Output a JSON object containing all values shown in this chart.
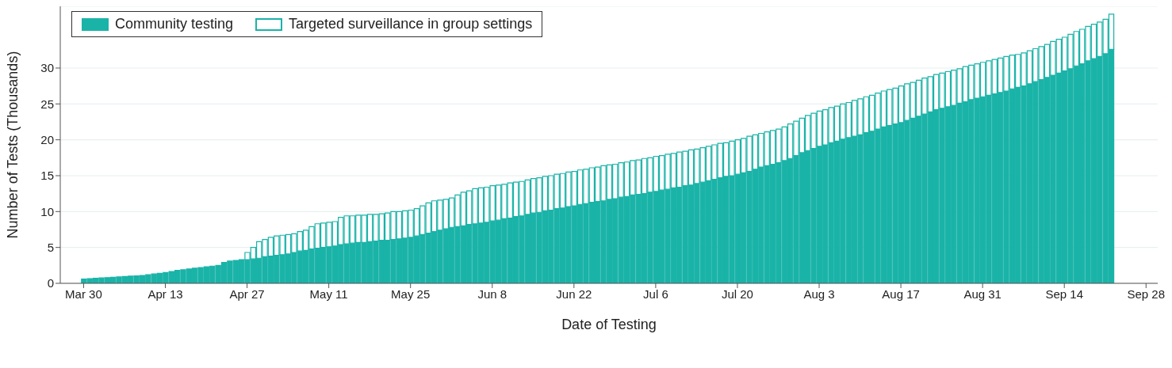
{
  "chart_data": {
    "type": "bar",
    "stacked": true,
    "xlabel": "Date of Testing",
    "ylabel": "Number of Tests (Thousands)",
    "grid": "y",
    "legend": "top left",
    "x": [
      "--03-30",
      "--03-31",
      "--04-01",
      "--04-02",
      "--04-03",
      "--04-04",
      "--04-05",
      "--04-06",
      "--04-07",
      "--04-08",
      "--04-09",
      "--04-10",
      "--04-11",
      "--04-12",
      "--04-13",
      "--04-14",
      "--04-15",
      "--04-16",
      "--04-17",
      "--04-18",
      "--04-19",
      "--04-20",
      "--04-21",
      "--04-22",
      "--04-23",
      "--04-24",
      "--04-25",
      "--04-26",
      "--04-27",
      "--04-28",
      "--04-29",
      "--04-30",
      "--05-01",
      "--05-02",
      "--05-03",
      "--05-04",
      "--05-05",
      "--05-06",
      "--05-07",
      "--05-08",
      "--05-09",
      "--05-10",
      "--05-11",
      "--05-12",
      "--05-13",
      "--05-14",
      "--05-15",
      "--05-16",
      "--05-17",
      "--05-18",
      "--05-19",
      "--05-20",
      "--05-21",
      "--05-22",
      "--05-23",
      "--05-24",
      "--05-25",
      "--05-26",
      "--05-27",
      "--05-28",
      "--05-29",
      "--05-30",
      "--05-31",
      "--06-01",
      "--06-02",
      "--06-03",
      "--06-04",
      "--06-05",
      "--06-06",
      "--06-07",
      "--06-08",
      "--06-09",
      "--06-10",
      "--06-11",
      "--06-12",
      "--06-13",
      "--06-14",
      "--06-15",
      "--06-16",
      "--06-17",
      "--06-18",
      "--06-19",
      "--06-20",
      "--06-21",
      "--06-22",
      "--06-23",
      "--06-24",
      "--06-25",
      "--06-26",
      "--06-27",
      "--06-28",
      "--06-29",
      "--06-30",
      "--07-01",
      "--07-02",
      "--07-03",
      "--07-04",
      "--07-05",
      "--07-06",
      "--07-07",
      "--07-08",
      "--07-09",
      "--07-10",
      "--07-11",
      "--07-12",
      "--07-13",
      "--07-14",
      "--07-15",
      "--07-16",
      "--07-17",
      "--07-18",
      "--07-19",
      "--07-20",
      "--07-21",
      "--07-22",
      "--07-23",
      "--07-24",
      "--07-25",
      "--07-26",
      "--07-27",
      "--07-28",
      "--07-29",
      "--07-30",
      "--07-31",
      "--08-01",
      "--08-02",
      "--08-03",
      "--08-04",
      "--08-05",
      "--08-06",
      "--08-07",
      "--08-08",
      "--08-09",
      "--08-10",
      "--08-11",
      "--08-12",
      "--08-13",
      "--08-14",
      "--08-15",
      "--08-16",
      "--08-17",
      "--08-18",
      "--08-19",
      "--08-20",
      "--08-21",
      "--08-22",
      "--08-23",
      "--08-24",
      "--08-25",
      "--08-26",
      "--08-27",
      "--08-28",
      "--08-29",
      "--08-30",
      "--08-31",
      "--09-01",
      "--09-02",
      "--09-03",
      "--09-04",
      "--09-05",
      "--09-06",
      "--09-07",
      "--09-08",
      "--09-09",
      "--09-10",
      "--09-11",
      "--09-12",
      "--09-13",
      "--09-14",
      "--09-15",
      "--09-16",
      "--09-17",
      "--09-18",
      "--09-19",
      "--09-20",
      "--09-21",
      "--09-22"
    ],
    "series": [
      {
        "name": "Community testing",
        "color": "#1ab3a8",
        "values": [
          0.6,
          0.65,
          0.7,
          0.75,
          0.8,
          0.85,
          0.9,
          0.95,
          1.0,
          1.05,
          1.1,
          1.2,
          1.3,
          1.4,
          1.5,
          1.65,
          1.8,
          1.9,
          2.0,
          2.1,
          2.2,
          2.3,
          2.4,
          2.5,
          2.9,
          3.1,
          3.2,
          3.3,
          3.3,
          3.4,
          3.5,
          3.7,
          3.8,
          3.9,
          4.0,
          4.1,
          4.3,
          4.5,
          4.6,
          4.8,
          4.9,
          5.0,
          5.1,
          5.2,
          5.4,
          5.5,
          5.6,
          5.7,
          5.7,
          5.8,
          5.9,
          6.0,
          6.0,
          6.1,
          6.2,
          6.3,
          6.4,
          6.6,
          6.8,
          7.0,
          7.2,
          7.4,
          7.6,
          7.8,
          7.9,
          8.0,
          8.2,
          8.3,
          8.4,
          8.5,
          8.7,
          8.8,
          9.0,
          9.1,
          9.3,
          9.4,
          9.6,
          9.8,
          9.9,
          10.1,
          10.2,
          10.4,
          10.5,
          10.7,
          10.8,
          11.0,
          11.1,
          11.3,
          11.4,
          11.5,
          11.7,
          11.8,
          12.0,
          12.1,
          12.3,
          12.4,
          12.5,
          12.7,
          12.8,
          13.0,
          13.1,
          13.3,
          13.4,
          13.6,
          13.7,
          13.9,
          14.1,
          14.3,
          14.5,
          14.7,
          14.9,
          15.0,
          15.2,
          15.4,
          15.6,
          15.9,
          16.2,
          16.4,
          16.6,
          16.8,
          17.1,
          17.4,
          17.8,
          18.2,
          18.5,
          18.8,
          19.1,
          19.3,
          19.6,
          19.8,
          20.1,
          20.3,
          20.5,
          20.7,
          21.0,
          21.2,
          21.5,
          21.8,
          22.0,
          22.2,
          22.4,
          22.7,
          23.0,
          23.3,
          23.6,
          23.9,
          24.2,
          24.4,
          24.6,
          24.8,
          25.1,
          25.3,
          25.6,
          25.8,
          26.0,
          26.2,
          26.4,
          26.6,
          26.8,
          27.1,
          27.3,
          27.5,
          27.8,
          28.1,
          28.4,
          28.7,
          29.0,
          29.3,
          29.6,
          29.9,
          30.3,
          30.6,
          31.0,
          31.3,
          31.6,
          32.0,
          32.6
        ]
      },
      {
        "name": "Targeted surveillance in group settings",
        "color": "#1ab3a8",
        "values": [
          0,
          0,
          0,
          0,
          0,
          0,
          0,
          0,
          0,
          0,
          0,
          0,
          0,
          0,
          0,
          0,
          0,
          0,
          0,
          0,
          0,
          0,
          0,
          0,
          0,
          0,
          0,
          0,
          1.0,
          1.6,
          2.3,
          2.4,
          2.6,
          2.7,
          2.7,
          2.7,
          2.6,
          2.7,
          2.8,
          3.1,
          3.4,
          3.4,
          3.4,
          3.4,
          3.8,
          3.9,
          3.8,
          3.8,
          3.8,
          3.8,
          3.7,
          3.7,
          3.8,
          3.9,
          3.8,
          3.8,
          3.8,
          3.8,
          4.0,
          4.2,
          4.3,
          4.2,
          4.1,
          4.1,
          4.4,
          4.7,
          4.7,
          4.9,
          4.9,
          4.9,
          4.9,
          4.9,
          4.8,
          4.9,
          4.8,
          4.8,
          4.8,
          4.8,
          4.8,
          4.8,
          4.8,
          4.8,
          4.8,
          4.8,
          4.8,
          4.8,
          4.8,
          4.8,
          4.8,
          4.9,
          4.8,
          4.8,
          4.8,
          4.8,
          4.8,
          4.8,
          4.9,
          4.8,
          4.9,
          4.8,
          4.9,
          4.8,
          4.9,
          4.8,
          4.9,
          4.8,
          4.8,
          4.8,
          4.8,
          4.8,
          4.7,
          4.8,
          4.8,
          4.8,
          4.9,
          4.8,
          4.7,
          4.7,
          4.7,
          4.7,
          4.7,
          4.8,
          4.8,
          4.8,
          4.9,
          4.9,
          4.9,
          4.9,
          4.9,
          4.9,
          4.9,
          4.9,
          5.0,
          5.0,
          5.0,
          5.0,
          5.0,
          5.0,
          5.0,
          5.0,
          5.1,
          5.1,
          5.0,
          5.0,
          5.0,
          4.9,
          4.9,
          4.9,
          4.9,
          4.9,
          4.8,
          4.9,
          4.8,
          4.8,
          4.8,
          4.8,
          4.8,
          4.8,
          4.8,
          4.7,
          4.6,
          4.6,
          4.6,
          4.6,
          4.6,
          4.6,
          4.7,
          4.7,
          4.7,
          4.8,
          4.8,
          4.8,
          4.8,
          4.8,
          4.8,
          4.8,
          4.9
        ]
      }
    ],
    "xlim": [
      "--03-26",
      "--09-30"
    ],
    "xticks": [
      {
        "value": "--03-30",
        "label": "Mar 30"
      },
      {
        "value": "--04-13",
        "label": "Apr 13"
      },
      {
        "value": "--04-27",
        "label": "Apr 27"
      },
      {
        "value": "--05-11",
        "label": "May 11"
      },
      {
        "value": "--05-25",
        "label": "May 25"
      },
      {
        "value": "--06-08",
        "label": "Jun 8"
      },
      {
        "value": "--06-22",
        "label": "Jun 22"
      },
      {
        "value": "--07-06",
        "label": "Jul 6"
      },
      {
        "value": "--07-20",
        "label": "Jul 20"
      },
      {
        "value": "--08-03",
        "label": "Aug 3"
      },
      {
        "value": "--08-17",
        "label": "Aug 17"
      },
      {
        "value": "--08-31",
        "label": "Aug 31"
      },
      {
        "value": "--09-14",
        "label": "Sep 14"
      },
      {
        "value": "--09-28",
        "label": "Sep 28"
      }
    ],
    "ylim": [
      0,
      38.6
    ],
    "yticks": [
      0,
      5,
      10,
      15,
      20,
      25,
      30
    ]
  }
}
